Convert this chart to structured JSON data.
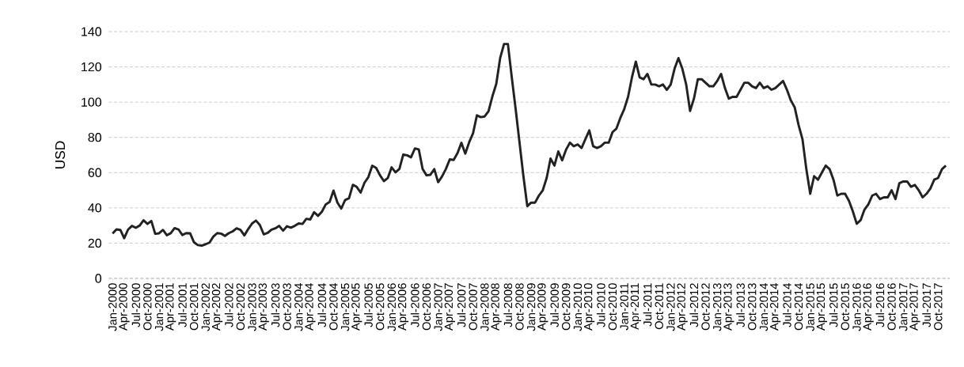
{
  "chart_data": {
    "type": "line",
    "ylabel": "USD",
    "color": "#222222",
    "ylim": [
      0,
      140
    ],
    "yticks": [
      0,
      20,
      40,
      60,
      80,
      100,
      120,
      140
    ],
    "grid": "y",
    "marker": "none",
    "line_style": "solid",
    "categories": [
      "Jan-2000",
      null,
      null,
      "Apr-2000",
      null,
      null,
      "Jul-2000",
      null,
      null,
      "Oct-2000",
      null,
      null,
      "Jan-2001",
      null,
      null,
      "Apr-2001",
      null,
      null,
      "Jul-2001",
      null,
      null,
      "Oct-2001",
      null,
      null,
      "Jan-2002",
      null,
      null,
      "Apr-2002",
      null,
      null,
      "Jul-2002",
      null,
      null,
      "Oct-2002",
      null,
      null,
      "Jan-2003",
      null,
      null,
      "Apr-2003",
      null,
      null,
      "Jul-2003",
      null,
      null,
      "Oct-2003",
      null,
      null,
      "Jan-2004",
      null,
      null,
      "Apr-2004",
      null,
      null,
      "Jul-2004",
      null,
      null,
      "Oct-2004",
      null,
      null,
      "Jan-2005",
      null,
      null,
      "Apr-2005",
      null,
      null,
      "Jul-2005",
      null,
      null,
      "Oct-2005",
      null,
      null,
      "Jan-2006",
      null,
      null,
      "Apr-2006",
      null,
      null,
      "Jul-2006",
      null,
      null,
      "Oct-2006",
      null,
      null,
      "Jan-2007",
      null,
      null,
      "Apr-2007",
      null,
      null,
      "Jul-2007",
      null,
      null,
      "Oct-2007",
      null,
      null,
      "Jan-2008",
      null,
      null,
      "Apr-2008",
      null,
      null,
      "Jul-2008",
      null,
      null,
      "Oct-2008",
      null,
      null,
      "Jan-2009",
      null,
      null,
      "Apr-2009",
      null,
      null,
      "Jul-2009",
      null,
      null,
      "Oct-2009",
      null,
      null,
      "Jan-2010",
      null,
      null,
      "Apr-2010",
      null,
      null,
      "Jul-2010",
      null,
      null,
      "Oct-2010",
      null,
      null,
      "Jan-2011",
      null,
      null,
      "Apr-2011",
      null,
      null,
      "Jul-2011",
      null,
      null,
      "Oct-2011",
      null,
      null,
      "Jan-2012",
      null,
      null,
      "Apr-2012",
      null,
      null,
      "Jul-2012",
      null,
      null,
      "Oct-2012",
      null,
      null,
      "Jan-2013",
      null,
      null,
      "Apr-2013",
      null,
      null,
      "Jul-2013",
      null,
      null,
      "Oct-2013",
      null,
      null,
      "Jan-2014",
      null,
      null,
      "Apr-2014",
      null,
      null,
      "Jul-2014",
      null,
      null,
      "Oct-2014",
      null,
      null,
      "Jan-2015",
      null,
      null,
      "Apr-2015",
      null,
      null,
      "Jul-2015",
      null,
      null,
      "Oct-2015",
      null,
      null,
      "Jan-2016",
      null,
      null,
      "Apr-2016",
      null,
      null,
      "Jul-2016",
      null,
      null,
      "Oct-2016",
      null,
      null,
      "Jan-2017",
      null,
      null,
      "Apr-2017",
      null,
      null,
      "Jul-2017",
      null,
      null,
      "Oct-2017",
      null,
      null
    ],
    "values": [
      25.5,
      27.8,
      27.5,
      22.8,
      27.7,
      29.8,
      28.7,
      30,
      33,
      30.9,
      32.6,
      25.3,
      25.6,
      27.5,
      24.5,
      25.6,
      28.5,
      27.8,
      24.6,
      25.7,
      25.6,
      20.5,
      18.9,
      18.6,
      19.4,
      20.3,
      23.7,
      25.7,
      25.4,
      24.1,
      25.7,
      26.7,
      28.4,
      27.5,
      24.4,
      28,
      31.2,
      32.8,
      30.3,
      25,
      25.8,
      27.6,
      28.4,
      29.8,
      27.1,
      29.6,
      28.8,
      29.8,
      31.2,
      30.9,
      33.8,
      33.4,
      37.6,
      35.5,
      37.8,
      42,
      43.4,
      49.8,
      43.1,
      39.6,
      44.5,
      45.5,
      53.1,
      51.9,
      48.7,
      54.3,
      57.5,
      63.9,
      62.7,
      58.5,
      55.2,
      56.9,
      63,
      60.2,
      62.1,
      70.3,
      69.8,
      68.7,
      73.7,
      73.2,
      62,
      58.5,
      58.8,
      62,
      54.6,
      57.8,
      62.1,
      67.5,
      67.2,
      71.1,
      76.9,
      70.8,
      77.2,
      82.3,
      92.5,
      91.5,
      91.9,
      94.8,
      103.3,
      110.4,
      125,
      133,
      133,
      114,
      96,
      77,
      58,
      41,
      43,
      43,
      47,
      50,
      57,
      68,
      64,
      72,
      67,
      73,
      77,
      75,
      76,
      74,
      79,
      84,
      75,
      74,
      75,
      77,
      77,
      83,
      85,
      91,
      96,
      103,
      114,
      123,
      114,
      113,
      116,
      110,
      110,
      109,
      110,
      107,
      110,
      119,
      125,
      119,
      110,
      95,
      102,
      113,
      113,
      111,
      109,
      109,
      112,
      116,
      108,
      102,
      103,
      103,
      107,
      111,
      111,
      109,
      108,
      111,
      108,
      109,
      107,
      108,
      110,
      112,
      107,
      101,
      97,
      87,
      79,
      62,
      48,
      58,
      56,
      60,
      64,
      62,
      56,
      47,
      48,
      48,
      44,
      38,
      31,
      33,
      39,
      42,
      47,
      48,
      45,
      46,
      46,
      50,
      45,
      54,
      55,
      55,
      52,
      53,
      50,
      46,
      48,
      51,
      56,
      57,
      62,
      64
    ]
  }
}
